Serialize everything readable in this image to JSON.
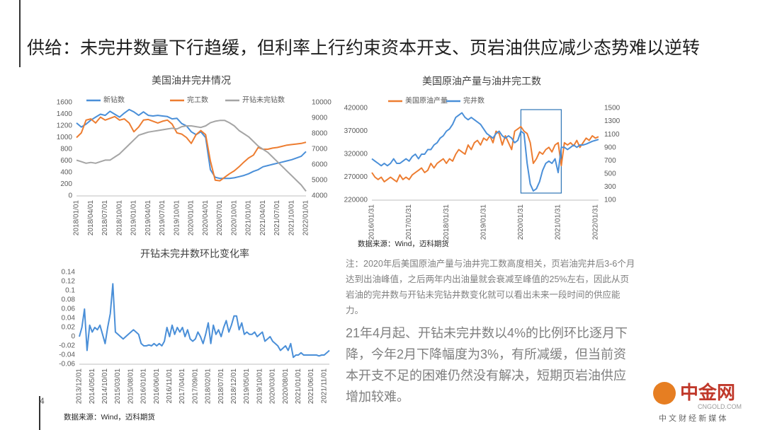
{
  "slide": {
    "title": "供给：未完井数量下行趋缓，但利率上行约束资本开支、页岩油供应减少态势难以逆转",
    "page_number": "4",
    "note": "注：2020年后美国原油产量与油井完工数高度相关，页岩油完井后3-6个月达到出油峰值，之后两年内出油量就会衰减至峰值的25%左右，因此从页岩油的完井数与开钻未完钻井数变化就可以看出未来一段时间的供应能力。",
    "summary": "21年4月起、开钻未完井数以4%的比例环比逐月下降，今年2月下降幅度为3%，有所减缓，但当前资本开支不足的困难仍然没有解决，短期页岩油供应增加较难。",
    "logo": {
      "name": "中金网",
      "site": "CNGOLD.COM",
      "slogan": "中 文 财 经 新 媒 体"
    }
  },
  "chart_data": [
    {
      "type": "line",
      "title": "美国油井完井情况",
      "categories": [
        "2018/01/01",
        null,
        null,
        "2018/04/01",
        null,
        null,
        "2018/07/01",
        null,
        null,
        "2018/10/01",
        null,
        null,
        "2019/01/01",
        null,
        null,
        "2019/04/01",
        null,
        null,
        "2019/07/01",
        null,
        null,
        "2019/10/01",
        null,
        null,
        "2020/01/01",
        null,
        null,
        "2020/04/01",
        null,
        null,
        "2020/07/01",
        null,
        null,
        "2020/10/01",
        null,
        null,
        "2021/01/01",
        null,
        null,
        "2021/04/01",
        null,
        null,
        "2021/07/01",
        null,
        null,
        "2021/10/01",
        null,
        null,
        "2022/01/01"
      ],
      "series": [
        {
          "name": "新钻数",
          "color": "#4a8fd8",
          "axis": "y",
          "values": [
            1250,
            1180,
            1230,
            1300,
            1350,
            1400,
            1380,
            1450,
            1400,
            1350,
            1420,
            1480,
            1440,
            1380,
            1440,
            1380,
            1370,
            1380,
            1370,
            1360,
            1320,
            1330,
            1240,
            1200,
            1100,
            1050,
            1100,
            1000,
            450,
            320,
            300,
            300,
            300,
            310,
            330,
            350,
            380,
            420,
            450,
            500,
            520,
            540,
            560,
            580,
            600,
            620,
            650,
            680,
            760
          ]
        },
        {
          "name": "完工数",
          "color": "#ed7d31",
          "axis": "y",
          "values": [
            1000,
            1080,
            1300,
            1320,
            1250,
            1350,
            1300,
            1330,
            1360,
            1300,
            1320,
            1250,
            1100,
            1180,
            1300,
            1310,
            1280,
            1250,
            1280,
            1300,
            1230,
            1080,
            1060,
            1000,
            900,
            1050,
            1120,
            1050,
            600,
            270,
            260,
            320,
            380,
            430,
            500,
            580,
            650,
            700,
            830,
            800,
            800,
            820,
            830,
            850,
            870,
            880,
            890,
            900,
            920
          ]
        },
        {
          "name": "开钻未完钻数",
          "color": "#a5a5a5",
          "axis": "y2",
          "values": [
            6300,
            6200,
            6100,
            6150,
            6100,
            6200,
            6300,
            6300,
            6500,
            6700,
            7000,
            7300,
            7600,
            7900,
            8000,
            8100,
            8150,
            8200,
            8250,
            8300,
            8350,
            8300,
            8450,
            8500,
            8500,
            8450,
            8400,
            8500,
            8700,
            8800,
            8850,
            8850,
            8700,
            8500,
            8200,
            8000,
            7800,
            7500,
            7200,
            7000,
            6800,
            6500,
            6200,
            5900,
            5600,
            5300,
            5000,
            4700,
            4300
          ]
        }
      ],
      "ylim": [
        0,
        1600
      ],
      "yticks": [
        0,
        200,
        400,
        600,
        800,
        1000,
        1200,
        1400,
        1600
      ],
      "y2lim": [
        4000,
        10000
      ],
      "y2ticks": [
        4000,
        5000,
        6000,
        7000,
        8000,
        9000,
        10000
      ],
      "grid": false
    },
    {
      "type": "line",
      "title": "美国原油产量与油井完工数",
      "source": "数据来源：Wind，迈科期货",
      "categories": [
        "2016/01/31",
        null,
        null,
        null,
        null,
        null,
        null,
        null,
        null,
        null,
        null,
        null,
        "2017/01/31",
        null,
        null,
        null,
        null,
        null,
        null,
        null,
        null,
        null,
        null,
        null,
        "2018/01/31",
        null,
        null,
        null,
        null,
        null,
        null,
        null,
        null,
        null,
        null,
        null,
        "2019/01/31",
        null,
        null,
        null,
        null,
        null,
        null,
        null,
        null,
        null,
        null,
        null,
        "2020/01/31",
        null,
        null,
        null,
        null,
        null,
        null,
        null,
        null,
        null,
        null,
        null,
        "2021/01/31",
        null,
        null,
        null,
        null,
        null,
        null,
        null,
        null,
        null,
        null,
        null,
        "2022/01/31",
        null
      ],
      "series": [
        {
          "name": "美国原油产量",
          "color": "#ed7d31",
          "axis": "y",
          "values": [
            280000,
            270000,
            265000,
            270000,
            260000,
            265000,
            270000,
            265000,
            260000,
            275000,
            265000,
            270000,
            265000,
            275000,
            280000,
            285000,
            290000,
            280000,
            285000,
            300000,
            290000,
            300000,
            305000,
            310000,
            300000,
            310000,
            305000,
            320000,
            330000,
            325000,
            320000,
            340000,
            330000,
            345000,
            350000,
            340000,
            355000,
            350000,
            360000,
            345000,
            370000,
            365000,
            340000,
            360000,
            345000,
            330000,
            370000,
            375000,
            380000,
            370000,
            365000,
            345000,
            300000,
            310000,
            325000,
            320000,
            330000,
            335000,
            325000,
            340000,
            345000,
            295000,
            345000,
            340000,
            345000,
            338000,
            350000,
            335000,
            345000,
            355000,
            350000,
            360000,
            355000,
            358000
          ]
        },
        {
          "name": "完井数",
          "color": "#4a8fd8",
          "axis": "y2",
          "values": [
            730,
            695,
            660,
            625,
            660,
            625,
            660,
            730,
            660,
            660,
            695,
            730,
            695,
            765,
            800,
            730,
            800,
            800,
            870,
            870,
            940,
            975,
            1045,
            1080,
            1150,
            1185,
            1255,
            1360,
            1395,
            1430,
            1360,
            1325,
            1360,
            1325,
            1290,
            1255,
            1185,
            1115,
            1080,
            1045,
            1115,
            1150,
            1080,
            1045,
            1080,
            1045,
            975,
            1010,
            1150,
            1115,
            660,
            345,
            240,
            275,
            380,
            555,
            660,
            695,
            660,
            730,
            520,
            905,
            905,
            870,
            905,
            940,
            905,
            940,
            940,
            954,
            975,
            996,
            1010,
            1024
          ]
        }
      ],
      "ylim": [
        220000,
        420000
      ],
      "yticks": [
        220000,
        270000,
        320000,
        370000,
        420000
      ],
      "y2lim": [
        100,
        1500
      ],
      "y2ticks": [
        100,
        300,
        500,
        700,
        900,
        1100,
        1300,
        1500
      ],
      "grid": false
    },
    {
      "type": "line",
      "title": "开钻未完井数环比变化率",
      "source": "数据来源：Wind，迈科期货",
      "categories": [
        "2013/12/01",
        null,
        null,
        null,
        null,
        "2014/05/01",
        null,
        null,
        null,
        null,
        "2014/10/01",
        null,
        null,
        null,
        null,
        "2015/03/01",
        null,
        null,
        null,
        null,
        "2015/08/01",
        null,
        null,
        null,
        null,
        "2016/01/01",
        null,
        null,
        null,
        null,
        "2016/06/01",
        null,
        null,
        null,
        null,
        "2016/11/01",
        null,
        null,
        null,
        null,
        "2017/04/01",
        null,
        null,
        null,
        null,
        "2017/09/01",
        null,
        null,
        null,
        null,
        "2018/02/01",
        null,
        null,
        null,
        null,
        "2018/07/01",
        null,
        null,
        null,
        null,
        "2018/12/01",
        null,
        null,
        null,
        null,
        "2019/05/01",
        null,
        null,
        null,
        null,
        "2019/10/01",
        null,
        null,
        null,
        null,
        "2020/03/01",
        null,
        null,
        null,
        null,
        "2020/08/01",
        null,
        null,
        null,
        null,
        "2021/01/01",
        null,
        null,
        null,
        null,
        "2021/06/01",
        null,
        null,
        null,
        null,
        "2021/11/01",
        null,
        null
      ],
      "series": [
        {
          "name": "开钻未完井数环比变化率",
          "color": "#4a8fd8",
          "values": [
            0,
            0.02,
            0.06,
            -0.03,
            0.025,
            0.01,
            0.02,
            0.015,
            0.025,
            0.005,
            -0.015,
            0.02,
            0.05,
            0.115,
            0.01,
            0.005,
            0,
            -0.005,
            0,
            0.005,
            0.01,
            0.015,
            0.01,
            0.005,
            -0.015,
            -0.02,
            -0.02,
            -0.018,
            -0.02,
            -0.015,
            -0.02,
            -0.015,
            -0.02,
            -0.01,
            0.02,
            0,
            0.025,
            0.005,
            0.02,
            0.01,
            0.02,
            0,
            0.015,
            -0.005,
            -0.01,
            -0.005,
            0.01,
            0,
            -0.015,
            0.005,
            0.03,
            -0.015,
            0.025,
            0.005,
            0.015,
            0,
            0.02,
            0.035,
            0.01,
            0.025,
            0.045,
            0.045,
            0.015,
            0.03,
            0.005,
            0.01,
            0.005,
            0.005,
            0.01,
            0,
            0.005,
            0.01,
            -0.01,
            -0.005,
            0,
            -0.01,
            -0.015,
            -0.02,
            -0.03,
            -0.025,
            -0.02,
            -0.03,
            -0.015,
            -0.045,
            -0.04,
            -0.04,
            -0.035,
            -0.04,
            -0.04,
            -0.04,
            -0.04,
            -0.04,
            -0.04,
            -0.042,
            -0.04,
            -0.04,
            -0.035,
            -0.03
          ]
        }
      ],
      "ylim": [
        -0.06,
        0.14
      ],
      "yticks": [
        -0.06,
        -0.04,
        -0.02,
        0,
        0.02,
        0.04,
        0.06,
        0.08,
        0.1,
        0.12,
        0.14
      ],
      "grid": false
    }
  ]
}
